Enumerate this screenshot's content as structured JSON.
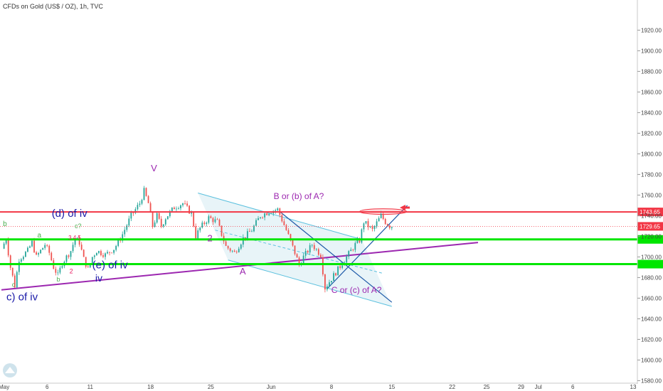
{
  "header": {
    "title": "CFDs on Gold (US$ / OZ), 1h, TVC"
  },
  "chart_data": {
    "type": "candlestick",
    "title": "CFDs on Gold (US$ / OZ), 1h, TVC",
    "ylim": [
      1572,
      1932
    ],
    "yticks": [
      1580,
      1600,
      1620,
      1640,
      1660,
      1680,
      1700,
      1720,
      1740,
      1760,
      1780,
      1800,
      1820,
      1840,
      1860,
      1880,
      1900,
      1920
    ],
    "x_range_days": [
      -0.3,
      73
    ],
    "xticks": [
      {
        "label": "May",
        "day": 0
      },
      {
        "label": "6",
        "day": 5
      },
      {
        "label": "11",
        "day": 10
      },
      {
        "label": "18",
        "day": 17
      },
      {
        "label": "25",
        "day": 24
      },
      {
        "label": "Jun",
        "day": 31
      },
      {
        "label": "8",
        "day": 38
      },
      {
        "label": "15",
        "day": 45
      },
      {
        "label": "22",
        "day": 52
      },
      {
        "label": "25",
        "day": 56
      },
      {
        "label": "29",
        "day": 60
      },
      {
        "label": "Jul",
        "day": 62
      },
      {
        "label": "6",
        "day": 66
      },
      {
        "label": "13",
        "day": 73
      }
    ],
    "price_path": [
      [
        0,
        1708
      ],
      [
        0.5,
        1718
      ],
      [
        1,
        1690
      ],
      [
        1.5,
        1672
      ],
      [
        2,
        1698
      ],
      [
        3,
        1706
      ],
      [
        3.5,
        1714
      ],
      [
        4,
        1700
      ],
      [
        5,
        1712
      ],
      [
        5.5,
        1704
      ],
      [
        6,
        1690
      ],
      [
        6.5,
        1682
      ],
      [
        7,
        1694
      ],
      [
        8,
        1706
      ],
      [
        8.5,
        1718
      ],
      [
        9,
        1714
      ],
      [
        9.5,
        1698
      ],
      [
        10,
        1688
      ],
      [
        10.5,
        1700
      ],
      [
        11,
        1706
      ],
      [
        12,
        1702
      ],
      [
        13,
        1708
      ],
      [
        13.5,
        1714
      ],
      [
        14,
        1722
      ],
      [
        15,
        1740
      ],
      [
        16,
        1752
      ],
      [
        16.5,
        1764
      ],
      [
        17,
        1752
      ],
      [
        17.5,
        1730
      ],
      [
        18,
        1740
      ],
      [
        18.5,
        1730
      ],
      [
        19,
        1738
      ],
      [
        20,
        1748
      ],
      [
        21,
        1752
      ],
      [
        22,
        1742
      ],
      [
        22.5,
        1720
      ],
      [
        23,
        1728
      ],
      [
        24,
        1738
      ],
      [
        25,
        1734
      ],
      [
        26,
        1710
      ],
      [
        27,
        1704
      ],
      [
        28,
        1718
      ],
      [
        29,
        1726
      ],
      [
        30,
        1740
      ],
      [
        31,
        1744
      ],
      [
        32,
        1746
      ],
      [
        33,
        1726
      ],
      [
        34,
        1704
      ],
      [
        34.5,
        1692
      ],
      [
        35,
        1700
      ],
      [
        36,
        1712
      ],
      [
        37,
        1702
      ],
      [
        37.5,
        1670
      ],
      [
        38,
        1676
      ],
      [
        39,
        1688
      ],
      [
        40,
        1700
      ],
      [
        41,
        1712
      ],
      [
        41.5,
        1716
      ],
      [
        42,
        1734
      ],
      [
        43,
        1726
      ],
      [
        44,
        1740
      ],
      [
        44.5,
        1734
      ],
      [
        45,
        1730
      ]
    ],
    "last_price": 1729.65,
    "price_labels": [
      {
        "value": 1743.65,
        "text": "1743.65",
        "color": "#f23645"
      },
      {
        "value": 1729.65,
        "text": "1729.65",
        "color": "#f23645"
      },
      {
        "value": 1717,
        "text": "",
        "color": "#00e600"
      },
      {
        "value": 1693,
        "text": "",
        "color": "#00e600"
      }
    ],
    "hlines": [
      {
        "value": 1743.65,
        "color": "#f23645",
        "width": 2
      },
      {
        "value": 1717,
        "color": "#00e600",
        "width": 3
      },
      {
        "value": 1693,
        "color": "#00e600",
        "width": 3
      }
    ],
    "wave_labels": [
      {
        "text": "V",
        "day": 17.4,
        "price": 1783,
        "color": "#9c27b0",
        "size": 13
      },
      {
        "text": "B or (b) of A?",
        "day": 34.2,
        "price": 1756,
        "color": "#9c27b0",
        "size": 12
      },
      {
        "text": "(d) of iv",
        "day": 7.6,
        "price": 1739,
        "color": "#1a1aa8",
        "size": 15
      },
      {
        "text": "b",
        "day": 0.1,
        "price": 1730,
        "color": "#4caf50",
        "size": 10
      },
      {
        "text": "c?",
        "day": 8.6,
        "price": 1728,
        "color": "#4caf50",
        "size": 9
      },
      {
        "text": "a",
        "day": 4.1,
        "price": 1719,
        "color": "#4caf50",
        "size": 10
      },
      {
        "text": "3 4 5",
        "day": 8.2,
        "price": 1717,
        "color": "#e91e63",
        "size": 8
      },
      {
        "text": "2",
        "day": 23.9,
        "price": 1715,
        "color": "#9c27b0",
        "size": 13
      },
      {
        "text": "(e) of iv",
        "day": 12.3,
        "price": 1689,
        "color": "#1a1aa8",
        "size": 15
      },
      {
        "text": "2",
        "day": 7.8,
        "price": 1684,
        "color": "#e91e63",
        "size": 9
      },
      {
        "text": "A",
        "day": 27.7,
        "price": 1683,
        "color": "#9c27b0",
        "size": 13
      },
      {
        "text": "b",
        "day": 6.3,
        "price": 1676,
        "color": "#4caf50",
        "size": 9
      },
      {
        "text": "iv",
        "day": 11.0,
        "price": 1676,
        "color": "#1a1aa8",
        "size": 14
      },
      {
        "text": "c",
        "day": 1.1,
        "price": 1671,
        "color": "#4caf50",
        "size": 9
      },
      {
        "text": "C or (c) of A?",
        "day": 40.9,
        "price": 1665,
        "color": "#9c27b0",
        "size": 12
      },
      {
        "text": "c) of iv",
        "day": 2.1,
        "price": 1658,
        "color": "#1a1aa8",
        "size": 15
      }
    ]
  }
}
